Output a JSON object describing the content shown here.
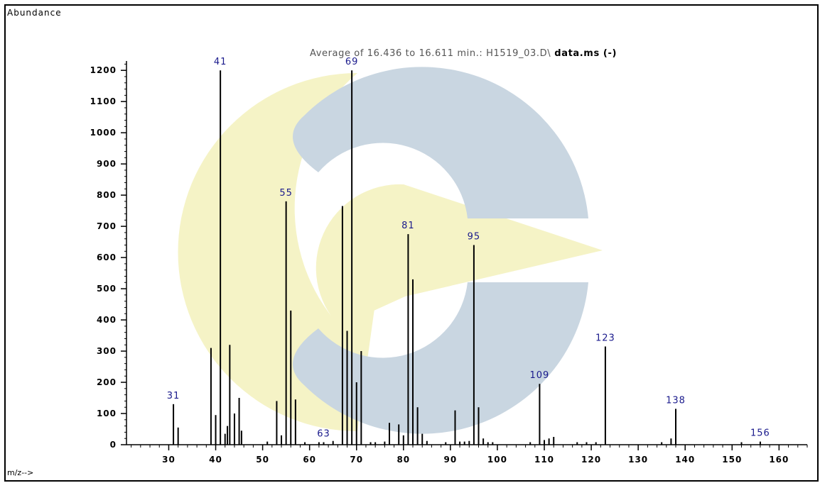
{
  "colors": {
    "axis": "#000000",
    "bar": "#000000",
    "peak_label": "#1a1a8c",
    "title": "#555555",
    "watermark_blue": "#c9d6e1",
    "watermark_yellow": "#f5f3c6"
  },
  "labels": {
    "ylabel": "Abundance",
    "xlabel": "m/z-->",
    "title_prefix": "Average of 16.436 to 16.611 min.: H1519_03.D\\",
    "title_suffix": " data.ms (-)"
  },
  "chart_data": {
    "type": "bar",
    "title": "Average of 16.436 to 16.611 min.: H1519_03.D\\ data.ms (-)",
    "xlabel": "m/z-->",
    "ylabel": "Abundance",
    "xlim": [
      21,
      166
    ],
    "ylim": [
      0,
      1230
    ],
    "x_ticks": [
      30,
      40,
      50,
      60,
      70,
      80,
      90,
      100,
      110,
      120,
      130,
      140,
      150,
      160
    ],
    "y_ticks": [
      0,
      100,
      200,
      300,
      400,
      500,
      600,
      700,
      800,
      900,
      1000,
      1100,
      1200
    ],
    "grid": false,
    "series": [
      {
        "x": [
          31,
          32,
          39,
          40,
          41,
          42,
          42.5,
          43,
          44,
          45,
          45.5,
          51,
          53,
          54,
          55,
          56,
          57,
          59,
          62,
          63,
          65,
          67,
          68,
          69,
          70,
          71,
          73,
          74,
          76,
          77,
          79,
          80,
          81,
          82,
          83,
          84,
          85,
          89,
          91,
          92,
          93,
          94,
          95,
          96,
          97,
          98,
          99,
          107,
          109,
          110,
          111,
          112,
          117,
          119,
          121,
          123,
          135,
          137,
          138,
          152,
          156
        ],
        "values": [
          130,
          55,
          310,
          95,
          1200,
          35,
          60,
          320,
          100,
          150,
          45,
          10,
          140,
          30,
          780,
          430,
          145,
          8,
          8,
          8,
          12,
          765,
          365,
          1200,
          200,
          300,
          8,
          8,
          10,
          70,
          65,
          30,
          675,
          530,
          120,
          35,
          12,
          8,
          110,
          10,
          10,
          12,
          640,
          120,
          20,
          8,
          8,
          8,
          195,
          15,
          20,
          25,
          8,
          8,
          8,
          315,
          8,
          20,
          115,
          8,
          10
        ]
      }
    ],
    "peak_labels": [
      {
        "x": 31,
        "y": 130,
        "text": "31"
      },
      {
        "x": 41,
        "y": 1200,
        "text": "41"
      },
      {
        "x": 55,
        "y": 780,
        "text": "55"
      },
      {
        "x": 63,
        "y": 8,
        "text": "63"
      },
      {
        "x": 69,
        "y": 1200,
        "text": "69"
      },
      {
        "x": 81,
        "y": 675,
        "text": "81"
      },
      {
        "x": 95,
        "y": 640,
        "text": "95"
      },
      {
        "x": 109,
        "y": 195,
        "text": "109"
      },
      {
        "x": 123,
        "y": 315,
        "text": "123"
      },
      {
        "x": 138,
        "y": 115,
        "text": "138"
      },
      {
        "x": 156,
        "y": 10,
        "text": "156"
      }
    ]
  }
}
